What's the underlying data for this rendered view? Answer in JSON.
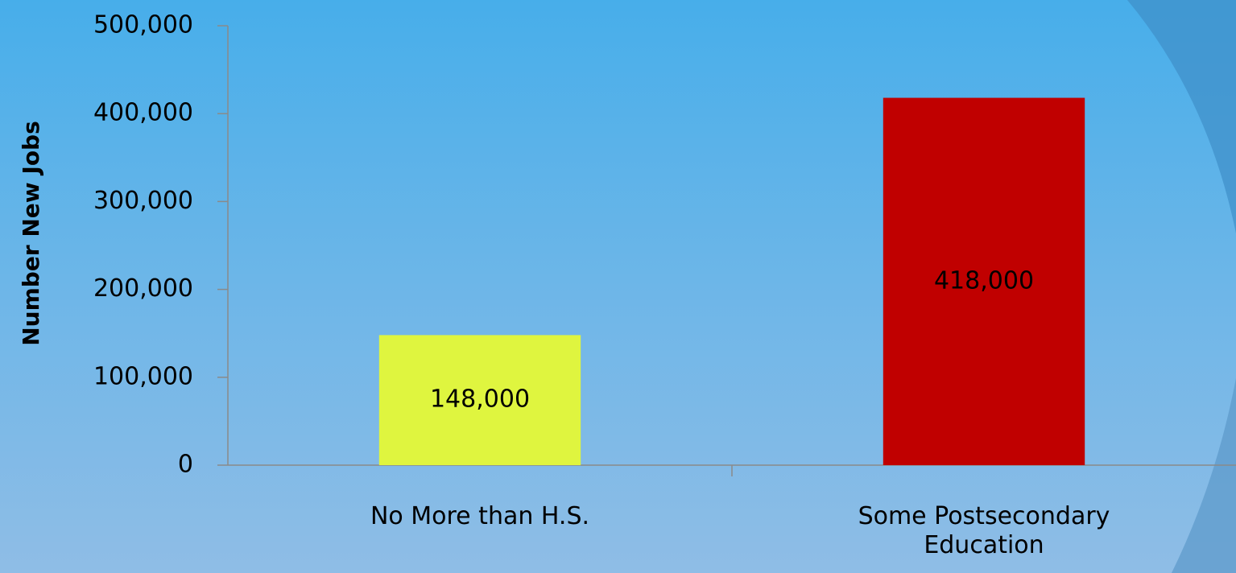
{
  "chart_data": {
    "type": "bar",
    "y_label": "Number New Jobs",
    "categories": [
      "No More than H.S.",
      "Some Postsecondary Education"
    ],
    "values": [
      148000,
      418000
    ],
    "value_labels": [
      "148,000",
      "418,000"
    ],
    "colors": [
      "#dff53f",
      "#c00000"
    ],
    "ylim": [
      0,
      500000
    ],
    "yticks": [
      0,
      {
        "value": 100000,
        "label": "100,000"
      },
      {
        "value": 200000,
        "label": "200,000"
      },
      {
        "value": 300000,
        "label": "300,000"
      },
      {
        "value": 400000,
        "label": "400,000"
      },
      {
        "value": 500000,
        "label": "500,000"
      }
    ]
  }
}
